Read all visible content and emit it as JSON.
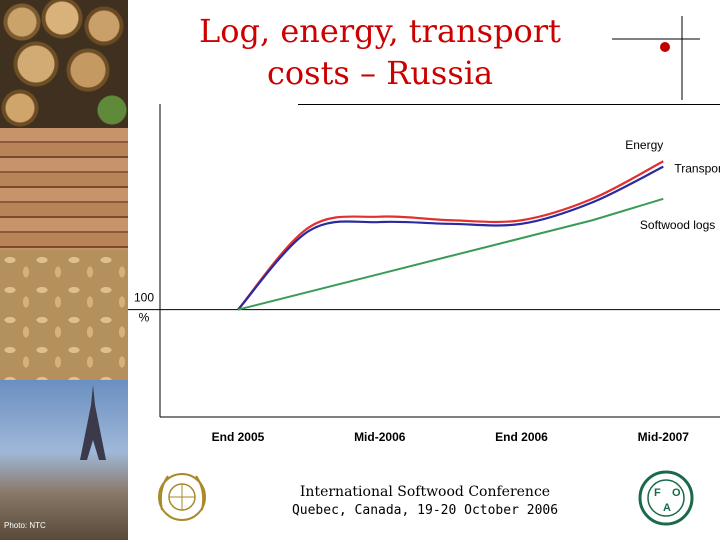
{
  "title": {
    "line1": "Log, energy, transport",
    "line2": "costs – Russia"
  },
  "chart_data": {
    "type": "line",
    "categories": [
      "End 2005",
      "Mid-2006",
      "End 2006",
      "Mid-2007"
    ],
    "x": [
      0,
      0.5,
      1,
      1.5,
      2,
      2.5,
      3
    ],
    "series": [
      {
        "name": "Energy",
        "color": "#e03030",
        "values": [
          100,
          146,
          152,
          150,
          150,
          162,
          183
        ]
      },
      {
        "name": "Transport",
        "color": "#2a2aa0",
        "values": [
          100,
          144,
          149,
          148,
          148,
          160,
          180
        ]
      },
      {
        "name": "Softwood logs",
        "color": "#3a9a5a",
        "values": [
          100,
          110,
          120,
          130,
          140,
          150,
          162
        ]
      }
    ],
    "yref": {
      "value": 100,
      "label_value": "100",
      "label_unit": "%"
    },
    "ylim": [
      40,
      215
    ],
    "xlim": [
      -0.55,
      3.4
    ],
    "grid": false
  },
  "footer": {
    "conference": "International Softwood Conference",
    "location": "Quebec, Canada, 19-20 October 2006",
    "photo_credit": "Photo: NTC"
  },
  "logos": [
    {
      "name": "un-emblem"
    },
    {
      "name": "fao-logo"
    }
  ]
}
